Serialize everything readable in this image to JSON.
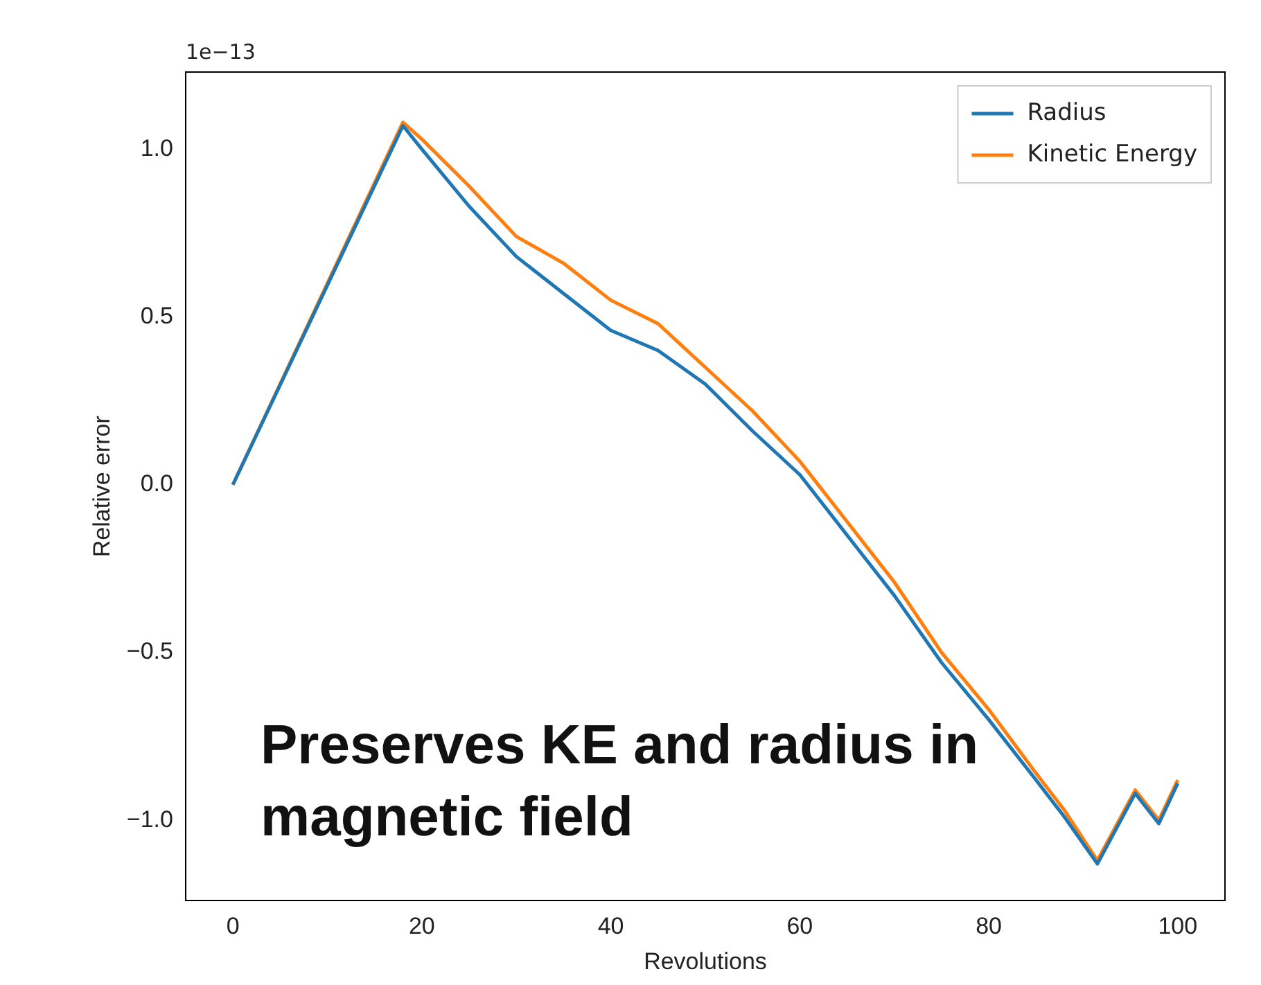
{
  "chart_data": {
    "type": "line",
    "xlabel": "Revolutions",
    "ylabel": "Relative error",
    "x": [
      0,
      18,
      20,
      25,
      30,
      35,
      40,
      45,
      50,
      55,
      60,
      65,
      70,
      75,
      80,
      85,
      88,
      91.5,
      95.5,
      98,
      100
    ],
    "series": [
      {
        "name": "Radius",
        "color": "#1f77b4",
        "values": [
          0,
          1.07,
          1.0,
          0.83,
          0.68,
          0.57,
          0.46,
          0.4,
          0.3,
          0.16,
          0.03,
          -0.15,
          -0.33,
          -0.53,
          -0.7,
          -0.88,
          -0.99,
          -1.13,
          -0.92,
          -1.01,
          -0.89
        ]
      },
      {
        "name": "Kinetic Energy",
        "color": "#ff7f0e",
        "values": [
          0,
          1.08,
          1.03,
          0.89,
          0.74,
          0.66,
          0.55,
          0.48,
          0.35,
          0.22,
          0.07,
          -0.11,
          -0.29,
          -0.5,
          -0.67,
          -0.86,
          -0.97,
          -1.12,
          -0.91,
          -1.0,
          -0.88
        ]
      }
    ],
    "xlim": [
      -5,
      105
    ],
    "xticks": [
      0,
      20,
      40,
      60,
      80,
      100
    ],
    "ylim": [
      -1.24,
      1.23
    ],
    "yticks": [
      {
        "value": -1.0,
        "label": "−1.0"
      },
      {
        "value": -0.5,
        "label": "−0.5"
      },
      {
        "value": 0,
        "label": "0.0"
      },
      {
        "value": 0.5,
        "label": "0.5"
      },
      {
        "value": 1.0,
        "label": "1.0"
      }
    ],
    "annotations": [
      "1e−13",
      "Preserves KE and radius in magnetic field"
    ],
    "legend": "top right",
    "grid": false,
    "marker": "none",
    "line_style": "solid"
  }
}
